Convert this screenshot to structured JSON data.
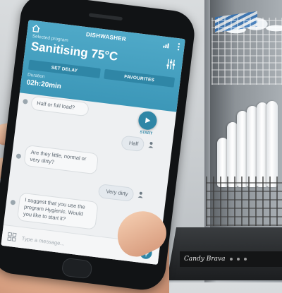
{
  "app": {
    "title": "DISHWASHER",
    "selected_program_label": "Selected program",
    "program_name": "Sanitising 75°C",
    "set_delay_label": "SET DELAY",
    "favourites_label": "FAVOURITES",
    "duration_label": "Duration",
    "duration_value": "02h:20min"
  },
  "chat": {
    "messages": [
      {
        "from": "bot",
        "text": "Half or full load?"
      },
      {
        "from": "user",
        "text": "Half"
      },
      {
        "from": "bot",
        "text": "Are they little, normal or very dirty?"
      },
      {
        "from": "user",
        "text": "Very dirty"
      },
      {
        "from": "bot",
        "text": "I suggest that you use the program Hygienic. Would you like to start it?"
      }
    ],
    "start_label": "START",
    "input_placeholder": "Type a message..."
  },
  "dishwasher": {
    "brand": "Candy Brava"
  },
  "colors": {
    "header": "#3c97b8",
    "accent": "#2f86a6",
    "chat_bg": "#eef0f2"
  },
  "icons": [
    "home-icon",
    "signal-icon",
    "menu-icon",
    "sliders-icon",
    "play-icon",
    "user-icon",
    "grid-icon",
    "mic-icon"
  ]
}
